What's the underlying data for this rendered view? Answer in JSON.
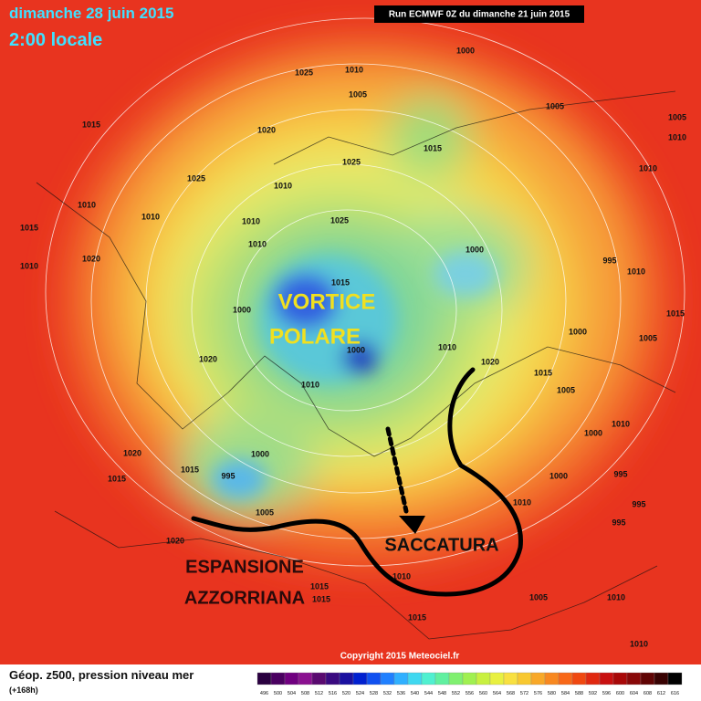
{
  "header": {
    "date": "dimanche 28 juin 2015",
    "time": "2:00 locale",
    "run": "Run ECMWF 0Z du dimanche 21 juin 2015"
  },
  "annotations": {
    "vortex_line1": "VORTICE",
    "vortex_line2": "POLARE",
    "high_line1": "ESPANSIONE",
    "high_line2": "AZZORRIANA",
    "trough": "SACCATURA"
  },
  "isobar_labels": [
    "1025",
    "1010",
    "1005",
    "1000",
    "1015",
    "1020",
    "1015",
    "1025",
    "1005",
    "1005",
    "1010",
    "1010",
    "1025",
    "1010",
    "1010",
    "1010",
    "1015",
    "1025",
    "1010",
    "1010",
    "1020",
    "1010",
    "1000",
    "995",
    "1010",
    "1015",
    "1000",
    "1000",
    "1010",
    "1020",
    "1000",
    "1005",
    "1015",
    "1020",
    "1010",
    "1015",
    "1005",
    "1010",
    "1000",
    "1020",
    "1000",
    "1015",
    "995",
    "1015",
    "1000",
    "995",
    "1010",
    "995",
    "1005",
    "995",
    "1020",
    "1010",
    "1015",
    "1015",
    "1005",
    "1010",
    "1015",
    "1010"
  ],
  "footer": {
    "caption": "Géop. z500, pression niveau mer",
    "lead": "(+168h)",
    "copyright": "Copyright 2015 Meteociel.fr"
  },
  "colorbar": {
    "labels": [
      496,
      500,
      504,
      508,
      512,
      516,
      520,
      524,
      528,
      532,
      536,
      540,
      544,
      548,
      552,
      556,
      560,
      564,
      568,
      572,
      576,
      580,
      584,
      588,
      592,
      596,
      600,
      604,
      608,
      612,
      616
    ]
  }
}
